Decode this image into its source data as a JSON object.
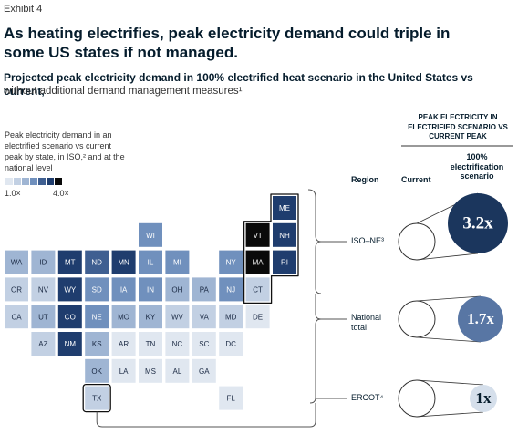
{
  "header": {
    "exhibit": "Exhibit 4",
    "title": "As heating electrifies, peak electricity demand could triple in some US states if not managed.",
    "subtitle_bold": "Projected peak electricity demand in 100% electrified heat scenario in the United States vs current,",
    "subtitle": "without additional demand management measures¹"
  },
  "legend": {
    "text": "Peak electricity demand in an electrified scenario vs current peak by state, in ISO,² and at the national level",
    "colors": [
      "#e0e7f0",
      "#c2d0e3",
      "#9fb5d3",
      "#7090bd",
      "#3f5f91",
      "#1f3d6e",
      "#0a0a0a"
    ],
    "min_label": "1.0×",
    "max_label": "4.0×"
  },
  "tiles": [
    {
      "label": "ME",
      "color": "#1f3d6e"
    },
    {
      "label": "WI",
      "color": "#7090bd"
    },
    {
      "label": "VT",
      "color": "#0a0a0a"
    },
    {
      "label": "NH",
      "color": "#1f3d6e"
    },
    {
      "label": "WA",
      "color": "#9fb5d3"
    },
    {
      "label": "ID",
      "color": "#9fb5d3"
    },
    {
      "label": "MT",
      "color": "#1f3d6e"
    },
    {
      "label": "ND",
      "color": "#3f5f91"
    },
    {
      "label": "MN",
      "color": "#1f3d6e"
    },
    {
      "label": "IL",
      "color": "#7090bd"
    },
    {
      "label": "MI",
      "color": "#7090bd"
    },
    {
      "label": "NY",
      "color": "#7090bd"
    },
    {
      "label": "MA",
      "color": "#0a0a0a"
    },
    {
      "label": "RI",
      "color": "#1f3d6e"
    },
    {
      "label": "OR",
      "color": "#c2d0e3"
    },
    {
      "label": "NV",
      "color": "#c2d0e3"
    },
    {
      "label": "WY",
      "color": "#1f3d6e"
    },
    {
      "label": "SD",
      "color": "#7090bd"
    },
    {
      "label": "IA",
      "color": "#7090bd"
    },
    {
      "label": "IN",
      "color": "#7090bd"
    },
    {
      "label": "OH",
      "color": "#9fb5d3"
    },
    {
      "label": "PA",
      "color": "#9fb5d3"
    },
    {
      "label": "NJ",
      "color": "#7090bd"
    },
    {
      "label": "CT",
      "color": "#c2d0e3"
    },
    {
      "label": "CA",
      "color": "#c2d0e3"
    },
    {
      "label": "UT",
      "color": "#9fb5d3"
    },
    {
      "label": "CO",
      "color": "#1f3d6e"
    },
    {
      "label": "NE",
      "color": "#7090bd"
    },
    {
      "label": "MO",
      "color": "#9fb5d3"
    },
    {
      "label": "KY",
      "color": "#9fb5d3"
    },
    {
      "label": "WV",
      "color": "#c2d0e3"
    },
    {
      "label": "VA",
      "color": "#c2d0e3"
    },
    {
      "label": "MD",
      "color": "#c2d0e3"
    },
    {
      "label": "DE",
      "color": "#e0e7f0"
    },
    {
      "label": "AZ",
      "color": "#c2d0e3"
    },
    {
      "label": "NM",
      "color": "#1f3d6e"
    },
    {
      "label": "KS",
      "color": "#9fb5d3"
    },
    {
      "label": "AR",
      "color": "#e0e7f0"
    },
    {
      "label": "TN",
      "color": "#e0e7f0"
    },
    {
      "label": "NC",
      "color": "#e0e7f0"
    },
    {
      "label": "SC",
      "color": "#e0e7f0"
    },
    {
      "label": "DC",
      "color": "#e0e7f0"
    },
    {
      "label": "OK",
      "color": "#9fb5d3"
    },
    {
      "label": "LA",
      "color": "#e0e7f0"
    },
    {
      "label": "MS",
      "color": "#e0e7f0"
    },
    {
      "label": "AL",
      "color": "#e0e7f0"
    },
    {
      "label": "GA",
      "color": "#e0e7f0"
    },
    {
      "label": "TX",
      "color": "#c2d0e3"
    },
    {
      "label": "FL",
      "color": "#e0e7f0"
    }
  ],
  "panel": {
    "header": "PEAK ELECTRICITY IN ELECTRIFIED SCENARIO VS CURRENT PEAK",
    "col_region": "Region",
    "col_current": "Current",
    "col_scenario": "100% electrification scenario",
    "rows": [
      {
        "region": "ISO–NE³",
        "value": "3.2x",
        "color": "#1b365d"
      },
      {
        "region": "National total",
        "value": "1.7x",
        "color": "#5876a4"
      },
      {
        "region": "ERCOT⁴",
        "value": "1x",
        "color": "#d5dfeb"
      }
    ]
  }
}
